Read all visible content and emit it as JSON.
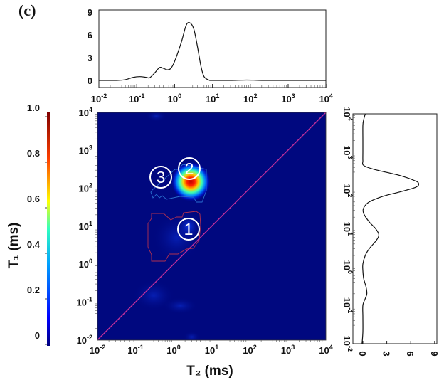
{
  "panel_label": "(c)",
  "chart_data": [
    {
      "type": "line",
      "name_role": "T2 projection (top)",
      "x_scale": "log",
      "xlim": [
        0.01,
        10000
      ],
      "ylim": [
        -0.3,
        9.3
      ],
      "x_ticks": [
        {
          "base": "10",
          "exp": "-2"
        },
        {
          "base": "10",
          "exp": "-1"
        },
        {
          "base": "10",
          "exp": "0"
        },
        {
          "base": "10",
          "exp": "1"
        },
        {
          "base": "10",
          "exp": "2"
        },
        {
          "base": "10",
          "exp": "3"
        },
        {
          "base": "10",
          "exp": "4"
        }
      ],
      "y_ticks": [
        "0",
        "3",
        "6",
        "9"
      ],
      "x": [
        0.01,
        0.03,
        0.05,
        0.08,
        0.12,
        0.18,
        0.22,
        0.3,
        0.4,
        0.5,
        0.65,
        0.8,
        1.0,
        1.5,
        2.0,
        2.5,
        3.2,
        4,
        5,
        6,
        8,
        10,
        30,
        80,
        200,
        1000,
        10000
      ],
      "y": [
        0,
        0,
        0.1,
        0.4,
        0.5,
        0.4,
        0.35,
        1.0,
        1.7,
        1.6,
        1.4,
        1.6,
        2.5,
        5.0,
        7.2,
        7.6,
        6.8,
        4.5,
        1.8,
        0.5,
        0.05,
        0,
        0,
        0.05,
        0,
        0,
        0
      ],
      "grid": false
    },
    {
      "type": "heatmap",
      "xlabel": "T₂ (ms)",
      "ylabel": "T₁ (ms)",
      "x_scale": "log",
      "y_scale": "log",
      "xlim": [
        0.01,
        10000
      ],
      "ylim": [
        0.01,
        10000
      ],
      "x_ticks": [
        {
          "base": "10",
          "exp": "-2"
        },
        {
          "base": "10",
          "exp": "-1"
        },
        {
          "base": "10",
          "exp": "0"
        },
        {
          "base": "10",
          "exp": "1"
        },
        {
          "base": "10",
          "exp": "2"
        },
        {
          "base": "10",
          "exp": "3"
        },
        {
          "base": "10",
          "exp": "4"
        }
      ],
      "y_ticks": [
        {
          "base": "10",
          "exp": "-2"
        },
        {
          "base": "10",
          "exp": "-1"
        },
        {
          "base": "10",
          "exp": "0"
        },
        {
          "base": "10",
          "exp": "1"
        },
        {
          "base": "10",
          "exp": "2"
        },
        {
          "base": "10",
          "exp": "3"
        },
        {
          "base": "10",
          "exp": "4"
        }
      ],
      "colorbar": {
        "ticks": [
          "0",
          "0.2",
          "0.4",
          "0.6",
          "0.8",
          "1.0"
        ],
        "range": [
          0,
          1
        ],
        "colormap": "jet"
      },
      "background_color": "#00087f",
      "diagonal_line": {
        "equation": "T1 = T2",
        "color": "#c0309a"
      },
      "peaks": [
        {
          "label": "1",
          "T2": 2.5,
          "T1": 7,
          "intensity": 0.25,
          "contour_color": "#b03050"
        },
        {
          "label": "2",
          "T2": 2.5,
          "T1": 150,
          "intensity": 1.0,
          "contour_color": "#2a6fd0"
        },
        {
          "label": "3",
          "T2": 0.4,
          "T1": 150,
          "intensity": 0.2,
          "contour_color": "#2a6fd0"
        }
      ],
      "grid": false
    },
    {
      "type": "line",
      "name_role": "T1 projection (right)",
      "y_scale": "log",
      "ylim": [
        0.01,
        10000
      ],
      "xlim": [
        -0.3,
        9
      ],
      "T1": [
        10000,
        7000,
        5000,
        2000,
        1000,
        600,
        450,
        350,
        250,
        180,
        150,
        120,
        90,
        70,
        50,
        35,
        25,
        15,
        10,
        7,
        5,
        3,
        2,
        1.2,
        0.8,
        0.5,
        0.3,
        0.2,
        0.15,
        0.1,
        0.05,
        0.02,
        0.01
      ],
      "amplitude": [
        0.3,
        0.1,
        0,
        0,
        0,
        0,
        0.1,
        1.5,
        4.5,
        6.5,
        7.0,
        6.6,
        4.5,
        2.5,
        0.8,
        0.1,
        0.1,
        0.8,
        1.6,
        2.0,
        1.7,
        0.8,
        0.3,
        0,
        0,
        0.1,
        0.4,
        0.5,
        0.3,
        0,
        0,
        0,
        -0.1
      ],
      "amp_ticks": [
        "0",
        "3",
        "6",
        "9"
      ],
      "T1_ticks": [
        {
          "base": "10",
          "exp": "-2"
        },
        {
          "base": "10",
          "exp": "-1"
        },
        {
          "base": "10",
          "exp": "0"
        },
        {
          "base": "10",
          "exp": "1"
        },
        {
          "base": "10",
          "exp": "2"
        },
        {
          "base": "10",
          "exp": "3"
        },
        {
          "base": "10",
          "exp": "4"
        }
      ],
      "grid": false
    }
  ]
}
